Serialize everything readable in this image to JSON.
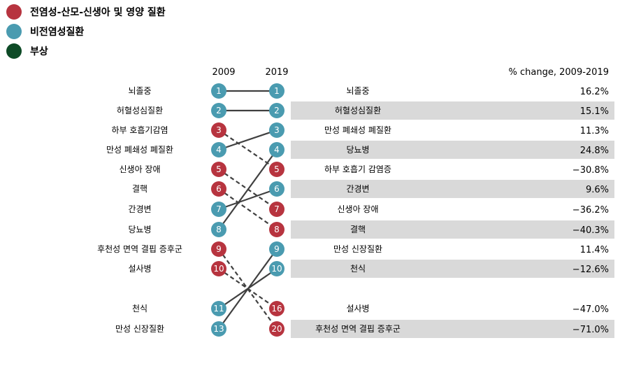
{
  "colors": {
    "communicable": "#b7343f",
    "noncommunicable": "#4a9bb0",
    "injury": "#0d4a26",
    "band": "#d9d9d9"
  },
  "legend": [
    {
      "label": "전염성-산모-신생아 및 영양 질환",
      "category": "communicable"
    },
    {
      "label": "비전염성질환",
      "category": "noncommunicable"
    },
    {
      "label": "부상",
      "category": "injury"
    }
  ],
  "chart_data": {
    "type": "slope",
    "years": [
      "2009",
      "2019"
    ],
    "pct_header": "% change, 2009-2019",
    "left": [
      {
        "rank": "1",
        "label": "뇌졸중",
        "category": "noncommunicable",
        "target": "1"
      },
      {
        "rank": "2",
        "label": "허혈성심질환",
        "category": "noncommunicable",
        "target": "2"
      },
      {
        "rank": "3",
        "label": "하부 호흡기감염",
        "category": "communicable",
        "target": "5"
      },
      {
        "rank": "4",
        "label": "만성 폐쇄성 폐질환",
        "category": "noncommunicable",
        "target": "3"
      },
      {
        "rank": "5",
        "label": "신생아 장애",
        "category": "communicable",
        "target": "7"
      },
      {
        "rank": "6",
        "label": "결핵",
        "category": "communicable",
        "target": "8"
      },
      {
        "rank": "7",
        "label": "간경변",
        "category": "noncommunicable",
        "target": "6"
      },
      {
        "rank": "8",
        "label": "당뇨병",
        "category": "noncommunicable",
        "target": "4"
      },
      {
        "rank": "9",
        "label": "후천성 면역 결핍 증후군",
        "category": "communicable",
        "target": "20"
      },
      {
        "rank": "10",
        "label": "설사병",
        "category": "communicable",
        "target": "16"
      },
      {
        "rank": "11",
        "label": "천식",
        "category": "noncommunicable",
        "target": "10"
      },
      {
        "rank": "13",
        "label": "만성 신장질환",
        "category": "noncommunicable",
        "target": "9"
      }
    ],
    "right": [
      {
        "rank": "1",
        "label": "뇌졸중",
        "category": "noncommunicable",
        "pct": "16.2%"
      },
      {
        "rank": "2",
        "label": "허혈성심질환",
        "category": "noncommunicable",
        "pct": "15.1%"
      },
      {
        "rank": "3",
        "label": "만성 폐쇄성 폐질환",
        "category": "noncommunicable",
        "pct": "11.3%"
      },
      {
        "rank": "4",
        "label": "당뇨병",
        "category": "noncommunicable",
        "pct": "24.8%"
      },
      {
        "rank": "5",
        "label": "하부 호흡기 감염증",
        "category": "communicable",
        "pct": "−30.8%"
      },
      {
        "rank": "6",
        "label": "간경변",
        "category": "noncommunicable",
        "pct": "9.6%"
      },
      {
        "rank": "7",
        "label": "신생아 장애",
        "category": "communicable",
        "pct": "−36.2%"
      },
      {
        "rank": "8",
        "label": "결핵",
        "category": "communicable",
        "pct": "−40.3%"
      },
      {
        "rank": "9",
        "label": "만성 신장질환",
        "category": "noncommunicable",
        "pct": "11.4%"
      },
      {
        "rank": "10",
        "label": "천식",
        "category": "noncommunicable",
        "pct": "−12.6%"
      },
      {
        "rank": "16",
        "label": "설사병",
        "category": "communicable",
        "pct": "−47.0%"
      },
      {
        "rank": "20",
        "label": "후천성 면역 결핍 증후군",
        "category": "communicable",
        "pct": "−71.0%"
      }
    ]
  }
}
